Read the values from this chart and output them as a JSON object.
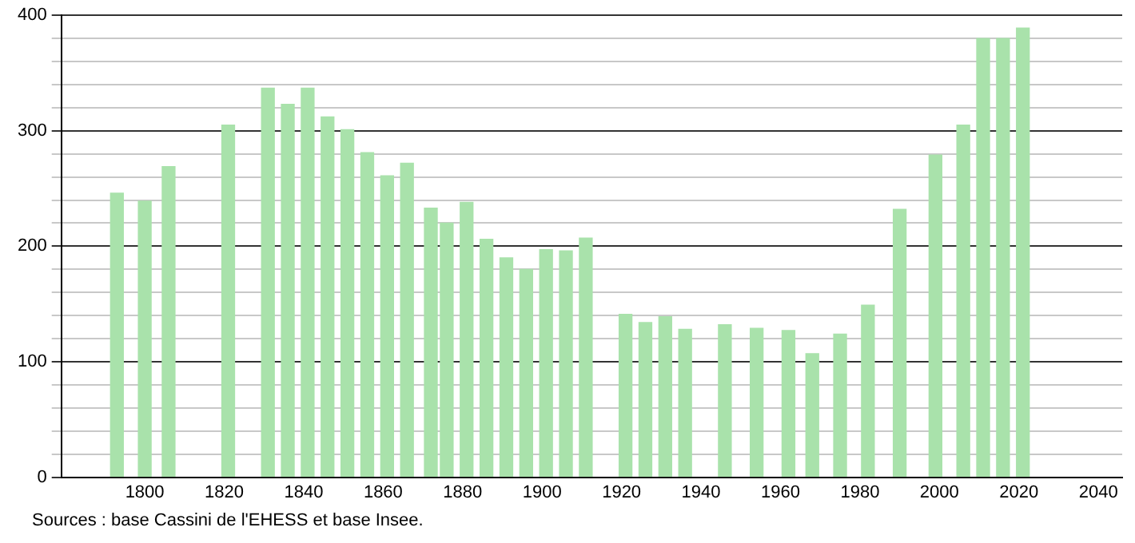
{
  "chart_data": {
    "type": "bar",
    "x": [
      1793,
      1800,
      1806,
      1821,
      1831,
      1836,
      1841,
      1846,
      1851,
      1856,
      1861,
      1866,
      1872,
      1876,
      1881,
      1886,
      1891,
      1896,
      1901,
      1906,
      1911,
      1921,
      1926,
      1931,
      1936,
      1946,
      1954,
      1962,
      1968,
      1975,
      1982,
      1990,
      1999,
      2006,
      2011,
      2016,
      2021
    ],
    "values": [
      246,
      239,
      269,
      305,
      337,
      323,
      337,
      312,
      301,
      281,
      261,
      272,
      233,
      220,
      238,
      206,
      190,
      180,
      197,
      196,
      207,
      141,
      134,
      139,
      128,
      132,
      129,
      127,
      107,
      124,
      149,
      232,
      279,
      305,
      380,
      380,
      389
    ],
    "color": "#a9e2ab",
    "xlim": [
      1779,
      2046
    ],
    "xticks": [
      1800,
      1820,
      1840,
      1860,
      1880,
      1900,
      1920,
      1940,
      1960,
      1980,
      2000,
      2020,
      2040
    ],
    "ylim": [
      0,
      400
    ],
    "yticks": [
      0,
      {
        "value": 20,
        "label": null
      },
      {
        "value": 40,
        "label": null
      },
      {
        "value": 60,
        "label": null
      },
      {
        "value": 80,
        "label": null
      },
      100,
      {
        "value": 120,
        "label": null
      },
      {
        "value": 140,
        "label": null
      },
      {
        "value": 160,
        "label": null
      },
      {
        "value": 180,
        "label": null
      },
      200,
      {
        "value": 220,
        "label": null
      },
      {
        "value": 240,
        "label": null
      },
      {
        "value": 260,
        "label": null
      },
      {
        "value": 280,
        "label": null
      },
      300,
      {
        "value": 320,
        "label": null
      },
      {
        "value": 340,
        "label": null
      },
      {
        "value": 360,
        "label": null
      },
      {
        "value": 380,
        "label": null
      },
      400
    ],
    "grid": "y",
    "legend": false,
    "annotations": [
      "Sources : base Cassini de l'EHESS et base Insee."
    ]
  }
}
